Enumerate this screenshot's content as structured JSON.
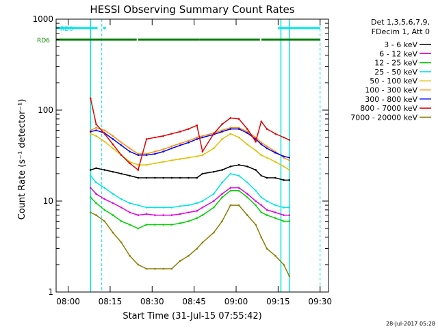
{
  "chart_data": {
    "type": "line",
    "title": "HESSI Observing Summary Count Rates",
    "xlabel": "Start Time (31-Jul-15 07:55:42)",
    "ylabel": "Count Rate (s⁻¹ detector⁻¹)",
    "yscale": "log",
    "ylim": [
      1,
      1000
    ],
    "xlim": [
      "07:55:42",
      "09:33:00"
    ],
    "x_ticks": [
      "08:00",
      "08:15",
      "08:30",
      "08:45",
      "09:00",
      "09:15",
      "09:30"
    ],
    "y_ticks": [
      "1",
      "10",
      "100",
      "1000"
    ],
    "grid": false,
    "legend_position": "right",
    "legend_header": [
      "Det 1,3,5,6,7,9,",
      "FDecim 1, Att 0"
    ],
    "footer_timestamp": "28-Jul-2017 05:28",
    "flags": [
      {
        "label": "RD0",
        "color": "#00e5e5",
        "segments": [
          [
            "07:55:42",
            "08:10:30"
          ],
          [
            "08:12:30",
            "08:13:30"
          ],
          [
            "09:15:00",
            "09:30:00"
          ]
        ]
      },
      {
        "label": "RD6",
        "color": "#008000",
        "segments": [
          [
            "07:55:42",
            "08:24:30"
          ],
          [
            "08:25:00",
            "08:47:00"
          ],
          [
            "08:47:00",
            "09:08:30"
          ],
          [
            "09:09:00",
            "09:30:00"
          ]
        ]
      }
    ],
    "orbit_boundaries": {
      "color": "#00e5e5",
      "solid": [
        "08:08:00",
        "09:16:00",
        "09:19:00"
      ],
      "dashed": [
        "08:12:00",
        "09:30:00"
      ]
    },
    "x": [
      "08:08",
      "08:10",
      "08:13",
      "08:16",
      "08:19",
      "08:22",
      "08:25",
      "08:28",
      "08:31",
      "08:34",
      "08:37",
      "08:40",
      "08:43",
      "08:46",
      "08:48",
      "08:52",
      "08:55",
      "08:58",
      "09:01",
      "09:04",
      "09:07",
      "09:09",
      "09:11",
      "09:14",
      "09:17",
      "09:19"
    ],
    "series": [
      {
        "name": "3 - 6 keV",
        "color": "#000000",
        "values": [
          22,
          23,
          22,
          21,
          20,
          19,
          18,
          18,
          18,
          18,
          18,
          18,
          18,
          18,
          20,
          21,
          22,
          24,
          25,
          24,
          22,
          19,
          18,
          18,
          17,
          17
        ]
      },
      {
        "name": "6 - 12 keV",
        "color": "#e000e0",
        "values": [
          14,
          12,
          10.5,
          9.5,
          8.5,
          7.5,
          7,
          7.2,
          7,
          7,
          7,
          7.2,
          7.5,
          7.8,
          8.5,
          10,
          12,
          14,
          14,
          12,
          10,
          9,
          8,
          7.5,
          7,
          7
        ]
      },
      {
        "name": "12 - 25 keV",
        "color": "#00d000",
        "values": [
          11,
          9.5,
          8,
          7,
          6,
          5.5,
          5,
          5.5,
          5.5,
          5.5,
          5.5,
          5.7,
          6,
          6.5,
          7,
          8.5,
          11,
          13,
          13,
          11,
          9,
          7.5,
          7,
          6.5,
          6,
          6
        ]
      },
      {
        "name": "25 - 50 keV",
        "color": "#00e5e5",
        "values": [
          19,
          16,
          14,
          12,
          10.5,
          9.5,
          9,
          8.5,
          8.5,
          8.5,
          8.5,
          8.8,
          9,
          9.5,
          10,
          12,
          16,
          20,
          19,
          16,
          13,
          11,
          10,
          9,
          8.5,
          8.5
        ]
      },
      {
        "name": "50 - 100 keV",
        "color": "#e0c000",
        "values": [
          55,
          52,
          45,
          38,
          32,
          27,
          25,
          25,
          26,
          27,
          28,
          29,
          30,
          31,
          32,
          38,
          48,
          55,
          50,
          42,
          36,
          32,
          30,
          27,
          24,
          22
        ]
      },
      {
        "name": "100 - 300 keV",
        "color": "#ff8c00",
        "values": [
          60,
          64,
          60,
          52,
          44,
          38,
          33,
          33,
          35,
          37,
          40,
          43,
          46,
          50,
          52,
          56,
          60,
          64,
          64,
          58,
          50,
          44,
          40,
          35,
          30,
          28
        ]
      },
      {
        "name": "300 - 800 keV",
        "color": "#0000ff",
        "values": [
          58,
          60,
          56,
          48,
          41,
          35,
          32,
          32,
          33,
          35,
          38,
          41,
          44,
          48,
          50,
          54,
          58,
          62,
          62,
          56,
          48,
          42,
          38,
          34,
          31,
          30
        ]
      },
      {
        "name": "800 - 7000 keV",
        "color": "#e00000",
        "values": [
          135,
          70,
          55,
          42,
          32,
          26,
          22,
          48,
          50,
          52,
          55,
          58,
          62,
          68,
          35,
          55,
          70,
          82,
          80,
          62,
          45,
          75,
          62,
          55,
          50,
          47
        ]
      },
      {
        "name": "7000 - 20000 keV",
        "color": "#8b7d00",
        "values": [
          7.5,
          7,
          6,
          4.5,
          3.5,
          2.5,
          2,
          1.8,
          1.8,
          1.8,
          1.8,
          2.2,
          2.5,
          3,
          3.5,
          4.5,
          6,
          9,
          9,
          7,
          5.5,
          4,
          3,
          2.5,
          2,
          1.5
        ]
      }
    ]
  }
}
